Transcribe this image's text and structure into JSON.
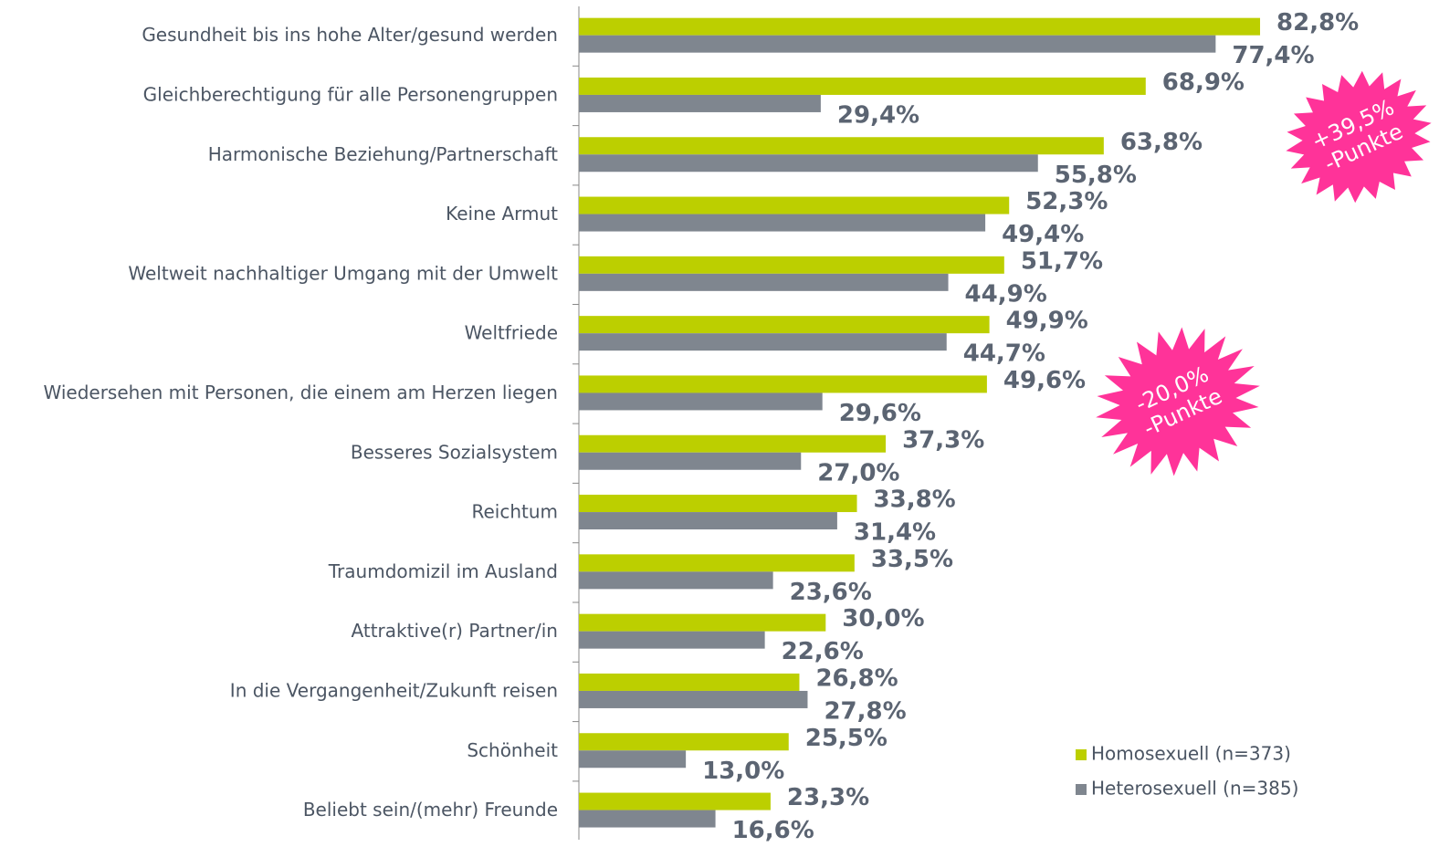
{
  "chart_data": {
    "type": "bar",
    "orientation": "horizontal",
    "categories": [
      "Gesundheit bis ins hohe Alter/gesund werden",
      "Gleichberechtigung für alle Personengruppen",
      "Harmonische Beziehung/Partnerschaft",
      "Keine Armut",
      "Weltweit nachhaltiger Umgang mit der Umwelt",
      "Weltfriede",
      "Wiedersehen mit Personen, die einem am Herzen liegen",
      "Besseres Sozialsystem",
      "Reichtum",
      "Traumdomizil im Ausland",
      "Attraktive(r) Partner/in",
      "In die Vergangenheit/Zukunft reisen",
      "Schönheit",
      "Beliebt sein/(mehr) Freunde"
    ],
    "series": [
      {
        "name": "Homosexuell (n=373)",
        "color": "#bccf00",
        "values": [
          82.8,
          68.9,
          63.8,
          52.3,
          51.7,
          49.9,
          49.6,
          37.3,
          33.8,
          33.5,
          30.0,
          26.8,
          25.5,
          23.3
        ],
        "value_labels": [
          "82,8%",
          "68,9%",
          "63,8%",
          "52,3%",
          "51,7%",
          "49,9%",
          "49,6%",
          "37,3%",
          "33,8%",
          "33,5%",
          "30,0%",
          "26,8%",
          "25,5%",
          "23,3%"
        ]
      },
      {
        "name": "Heterosexuell (n=385)",
        "color": "#7f868f",
        "values": [
          77.4,
          29.4,
          55.8,
          49.4,
          44.9,
          44.7,
          29.6,
          27.0,
          31.4,
          23.6,
          22.6,
          27.8,
          13.0,
          16.6
        ],
        "value_labels": [
          "77,4%",
          "29,4%",
          "55,8%",
          "49,4%",
          "44,9%",
          "44,7%",
          "29,6%",
          "27,0%",
          "31,4%",
          "23,6%",
          "22,6%",
          "27,8%",
          "13,0%",
          "16,6%"
        ]
      }
    ],
    "xlim": [
      0,
      100
    ],
    "legend": "bottom-right",
    "annotations": [
      {
        "lines": [
          "+39,5%",
          "-Punkte"
        ],
        "color": "#ff3399"
      },
      {
        "lines": [
          "-20,0%",
          "-Punkte"
        ],
        "color": "#ff3399"
      }
    ]
  }
}
